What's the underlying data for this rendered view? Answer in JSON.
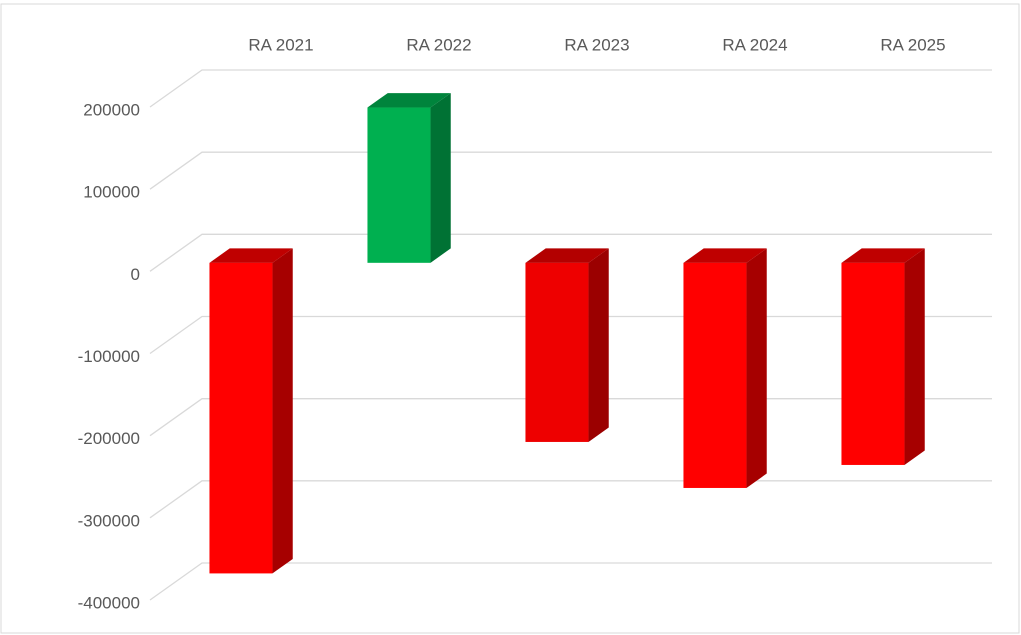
{
  "chart_data": {
    "type": "bar3d",
    "categories": [
      "RA 2021",
      "RA 2022",
      "RA 2023",
      "RA 2024",
      "RA 2025"
    ],
    "values": [
      -378000,
      189000,
      -218000,
      -274000,
      -246000
    ],
    "colors": [
      "#ff0000",
      "#00b050",
      "#ee0000",
      "#ff0000",
      "#ff0000"
    ],
    "ylim": [
      -400000,
      200000
    ],
    "yticks": [
      -400000,
      -300000,
      -200000,
      -100000,
      0,
      100000,
      200000
    ],
    "grid": true
  }
}
